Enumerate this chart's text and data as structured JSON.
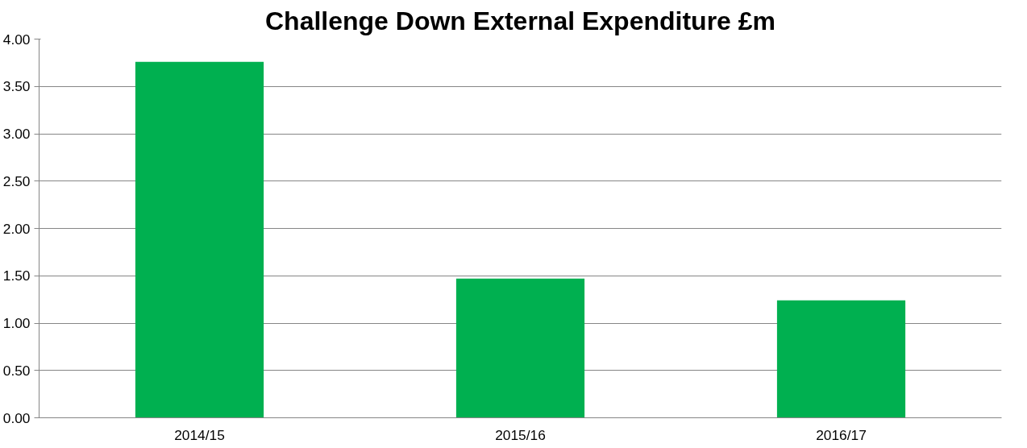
{
  "chart_data": {
    "type": "bar",
    "title": "Challenge Down External Expenditure £m",
    "categories": [
      "2014/15",
      "2015/16",
      "2016/17"
    ],
    "values": [
      3.76,
      1.47,
      1.24
    ],
    "color": "#00b050",
    "ylim": [
      0,
      4
    ],
    "yticks": [
      {
        "value": 0,
        "label": "0.00"
      },
      {
        "value": 0.5,
        "label": "0.50"
      },
      {
        "value": 1,
        "label": "1.00"
      },
      {
        "value": 1.5,
        "label": "1.50"
      },
      {
        "value": 2,
        "label": "2.00"
      },
      {
        "value": 2.5,
        "label": "2.50"
      },
      {
        "value": 3,
        "label": "3.00"
      },
      {
        "value": 3.5,
        "label": "3.50"
      },
      {
        "value": 4,
        "label": "4.00"
      }
    ],
    "grid": "y"
  }
}
